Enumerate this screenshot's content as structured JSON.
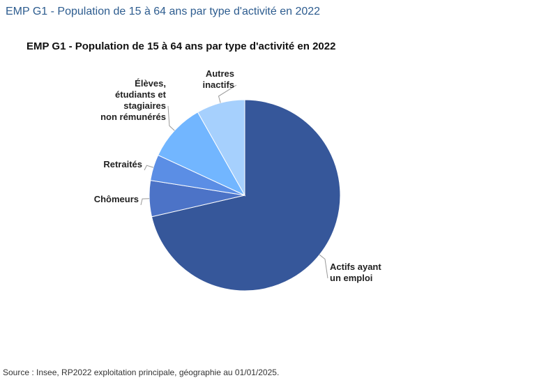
{
  "header": {
    "title": "EMP G1 - Population de 15 à 64 ans par type d'activité en 2022"
  },
  "chart_data": {
    "type": "pie",
    "title": "EMP G1 - Population de 15 à 64 ans par type d'activité en 2022",
    "start_angle_deg": 0,
    "direction": "clockwise",
    "slices": [
      {
        "label": "Actifs ayant un emploi",
        "label_lines": [
          "Actifs ayant",
          "un emploi"
        ],
        "value": 71.4,
        "color": "#36579a"
      },
      {
        "label": "Chômeurs",
        "label_lines": [
          "Chômeurs"
        ],
        "value": 6.1,
        "color": "#4c73c7"
      },
      {
        "label": "Retraités",
        "label_lines": [
          "Retraités"
        ],
        "value": 4.4,
        "color": "#5b8ee5"
      },
      {
        "label": "Élèves, étudiants et stagiaires non rémunérés",
        "label_lines": [
          "Élèves,",
          "étudiants et",
          "stagiaires",
          "non rémunérés"
        ],
        "value": 9.9,
        "color": "#72b6ff"
      },
      {
        "label": "Autres inactifs",
        "label_lines": [
          "Autres",
          "inactifs"
        ],
        "value": 8.2,
        "color": "#a6d0fd"
      }
    ]
  },
  "footer": {
    "source": "Source : Insee, RP2022 exploitation principale, géographie au 01/01/2025."
  }
}
